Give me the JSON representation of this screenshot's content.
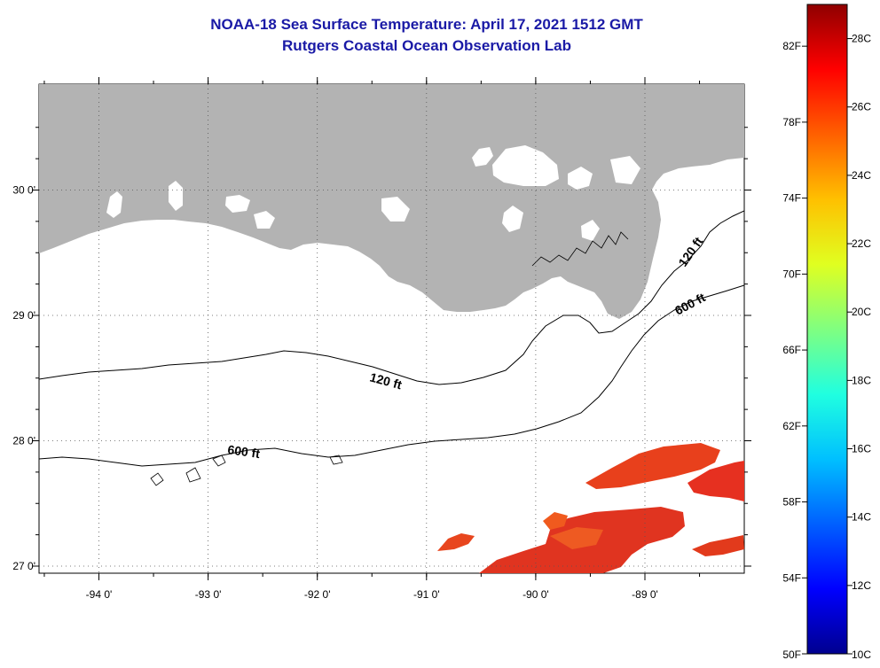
{
  "header": {
    "title": "NOAA-18 Sea Surface Temperature:  April 17, 2021 1512 GMT",
    "subtitle": "Rutgers Coastal Ocean Observation Lab"
  },
  "map": {
    "longitude_labels": [
      {
        "lon": -94,
        "text": "-94 0'"
      },
      {
        "lon": -93,
        "text": "-93 0'"
      },
      {
        "lon": -92,
        "text": "-92 0'"
      },
      {
        "lon": -91,
        "text": "-91 0'"
      },
      {
        "lon": -90,
        "text": "-90 0'"
      },
      {
        "lon": -89,
        "text": "-89 0'"
      }
    ],
    "latitude_labels": [
      {
        "lat": 30,
        "text": "30 0'"
      },
      {
        "lat": 29,
        "text": "29 0'"
      },
      {
        "lat": 28,
        "text": "28 0'"
      },
      {
        "lat": 27,
        "text": "27 0'"
      }
    ],
    "contour_labels": {
      "c120_west": "120 ft",
      "c600_west": "600 ft",
      "c120_east": "120 ft",
      "c600_east": "600 ft"
    },
    "colors": {
      "land": "#b3b3b3",
      "ocean": "#ffffff",
      "sst_warm": "#e8321c",
      "sst_hot": "#d81818",
      "sst_orange": "#f05a1e"
    }
  },
  "colorbar": {
    "fahrenheit_labels": [
      "50F",
      "54F",
      "58F",
      "62F",
      "66F",
      "70F",
      "74F",
      "78F",
      "82F"
    ],
    "celsius_labels": [
      "10C",
      "12C",
      "14C",
      "16C",
      "18C",
      "20C",
      "22C",
      "24C",
      "26C",
      "28C"
    ],
    "stops": [
      "#00008f",
      "#0000ff",
      "#0060ff",
      "#00c0ff",
      "#20ffe0",
      "#80ff80",
      "#e0ff20",
      "#ffc000",
      "#ff6000",
      "#ff0000",
      "#8f0000"
    ]
  }
}
